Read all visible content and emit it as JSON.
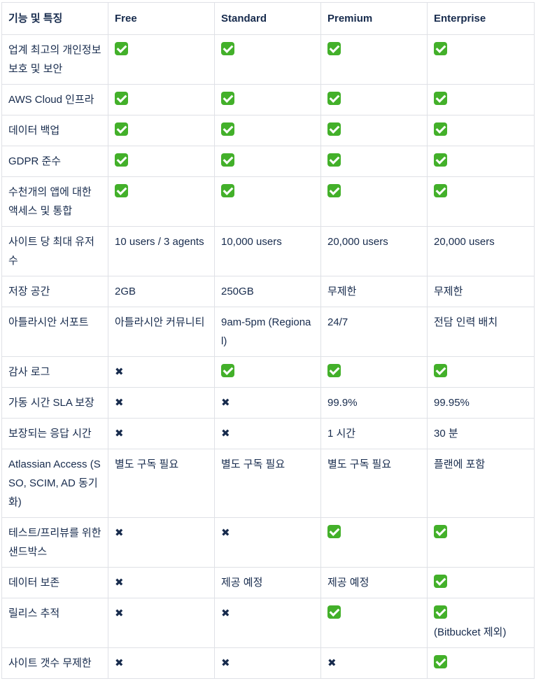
{
  "header": [
    "기능 및 특징",
    "Free",
    "Standard",
    "Premium",
    "Enterprise"
  ],
  "icons": {
    "check": "check-mark-icon",
    "cross": "cross-mark-icon",
    "check_color": "#43b02a"
  },
  "rows": [
    {
      "feature": "업계 최고의 개인정보 보호 및 보안",
      "cells": [
        {
          "icon": "check"
        },
        {
          "icon": "check"
        },
        {
          "icon": "check"
        },
        {
          "icon": "check"
        }
      ]
    },
    {
      "feature": "AWS Cloud 인프라",
      "cells": [
        {
          "icon": "check"
        },
        {
          "icon": "check"
        },
        {
          "icon": "check"
        },
        {
          "icon": "check"
        }
      ]
    },
    {
      "feature": "데이터 백업",
      "cells": [
        {
          "icon": "check"
        },
        {
          "icon": "check"
        },
        {
          "icon": "check"
        },
        {
          "icon": "check"
        }
      ]
    },
    {
      "feature": "GDPR 준수",
      "cells": [
        {
          "icon": "check"
        },
        {
          "icon": "check"
        },
        {
          "icon": "check"
        },
        {
          "icon": "check"
        }
      ]
    },
    {
      "feature": "수천개의 앱에 대한 액세스 및 통합",
      "cells": [
        {
          "icon": "check"
        },
        {
          "icon": "check"
        },
        {
          "icon": "check"
        },
        {
          "icon": "check"
        }
      ]
    },
    {
      "feature": "사이트 당 최대 유저 수",
      "cells": [
        {
          "text": "10 users / 3 agents"
        },
        {
          "text": "10,000 users"
        },
        {
          "text": "20,000 users"
        },
        {
          "text": "20,000 users"
        }
      ]
    },
    {
      "feature": "저장 공간",
      "cells": [
        {
          "text": "2GB"
        },
        {
          "text": "250GB"
        },
        {
          "text": "무제한"
        },
        {
          "text": "무제한"
        }
      ]
    },
    {
      "feature": "아틀라시안 서포트",
      "cells": [
        {
          "text": "아틀라시안 커뮤니티"
        },
        {
          "text": "9am-5pm (Regional)"
        },
        {
          "text": "24/7"
        },
        {
          "text": "전담 인력 배치"
        }
      ]
    },
    {
      "feature": "감사 로그",
      "cells": [
        {
          "icon": "cross"
        },
        {
          "icon": "check"
        },
        {
          "icon": "check"
        },
        {
          "icon": "check"
        }
      ]
    },
    {
      "feature": "가동 시간 SLA 보장",
      "cells": [
        {
          "icon": "cross"
        },
        {
          "icon": "cross"
        },
        {
          "text": "99.9%"
        },
        {
          "text": "99.95%"
        }
      ]
    },
    {
      "feature": "보장되는 응답 시간",
      "cells": [
        {
          "icon": "cross"
        },
        {
          "icon": "cross"
        },
        {
          "text": "1 시간"
        },
        {
          "text": "30 분"
        }
      ]
    },
    {
      "feature": "Atlassian Access (SSO, SCIM, AD 동기화)",
      "cells": [
        {
          "text": "별도 구독 필요"
        },
        {
          "text": "별도 구독 필요"
        },
        {
          "text": "별도 구독 필요"
        },
        {
          "text": "플랜에 포함"
        }
      ]
    },
    {
      "feature": "테스트/프리뷰를 위한 샌드박스",
      "cells": [
        {
          "icon": "cross"
        },
        {
          "icon": "cross"
        },
        {
          "icon": "check"
        },
        {
          "icon": "check"
        }
      ]
    },
    {
      "feature": "데이터 보존",
      "cells": [
        {
          "icon": "cross"
        },
        {
          "text": "제공 예정"
        },
        {
          "text": "제공 예정"
        },
        {
          "icon": "check"
        }
      ]
    },
    {
      "feature": "릴리스 추적",
      "cells": [
        {
          "icon": "cross"
        },
        {
          "icon": "cross"
        },
        {
          "icon": "check"
        },
        {
          "icon": "check",
          "text": "(Bitbucket 제외)"
        }
      ]
    },
    {
      "feature": "사이트 갯수 무제한",
      "cells": [
        {
          "icon": "cross"
        },
        {
          "icon": "cross"
        },
        {
          "icon": "cross"
        },
        {
          "icon": "check"
        }
      ]
    }
  ]
}
